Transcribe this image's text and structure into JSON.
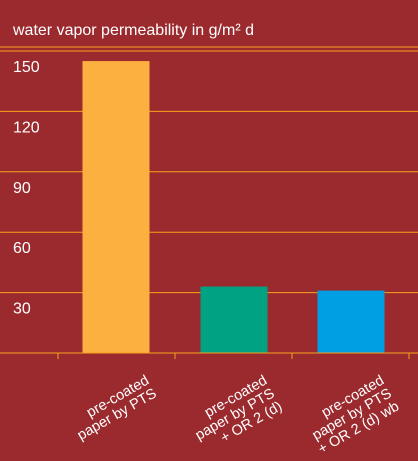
{
  "chart_data": {
    "type": "bar",
    "title": "water vapor permeability in g/m² d",
    "categories": [
      [
        "pre-coated",
        "paper by PTS"
      ],
      [
        "pre-coated",
        "paper by PTS",
        "+ OR 2 (d)"
      ],
      [
        "pre-coated",
        "paper by PTS",
        "+ OR 2 (d) wb"
      ]
    ],
    "values": [
      145,
      33,
      31
    ],
    "yticks": [
      30,
      60,
      90,
      120,
      150
    ],
    "ylim": [
      0,
      150
    ],
    "bar_colors": [
      "#fbb040",
      "#00a284",
      "#009fe3"
    ],
    "background_color": "#9b2a2f",
    "grid_color": "#f7a21b",
    "grid": true
  }
}
